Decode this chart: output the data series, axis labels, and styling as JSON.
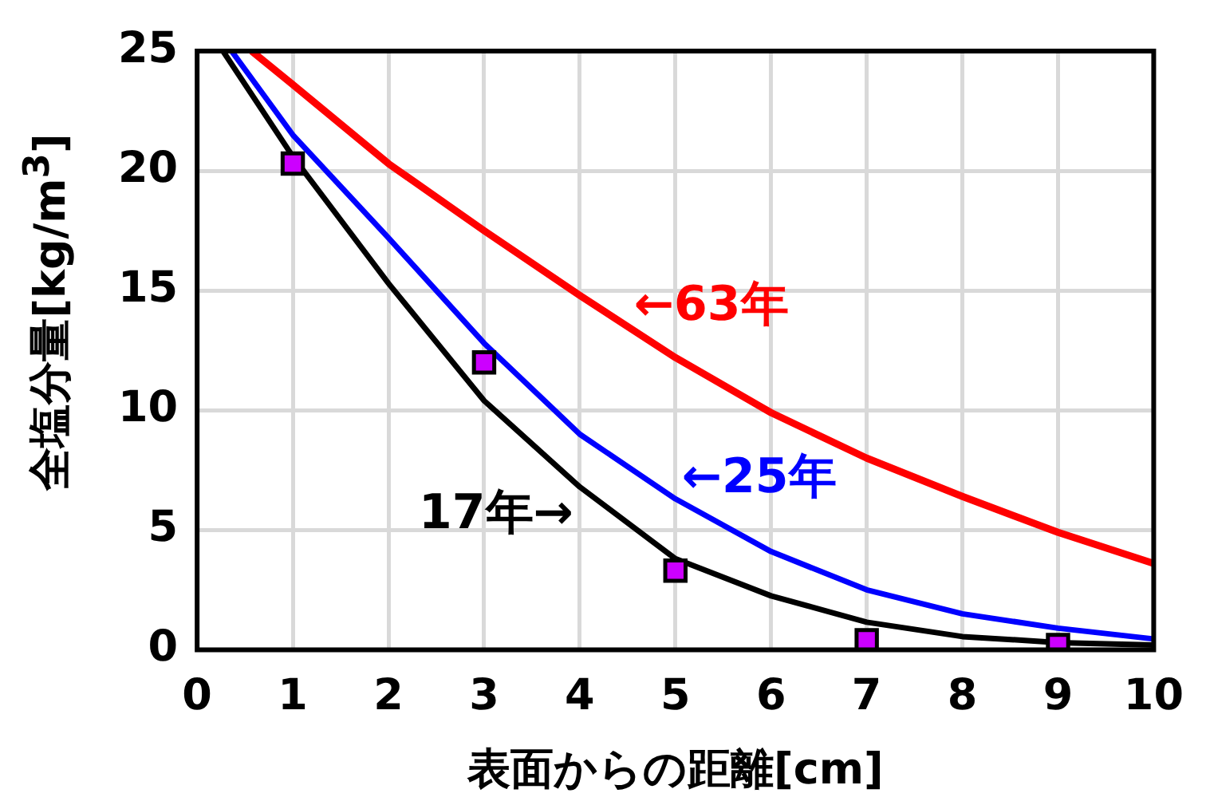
{
  "chart_data": {
    "type": "line",
    "xlabel": "表面からの距離[cm]",
    "ylabel": "全塩分量[kg/m$^{3}$]",
    "xlim": [
      0,
      10
    ],
    "xticks": [
      0,
      1,
      2,
      3,
      4,
      5,
      6,
      7,
      8,
      9,
      10
    ],
    "ylim": [
      0,
      25
    ],
    "yticks": [
      0,
      5,
      10,
      15,
      20,
      25
    ],
    "grid": true,
    "legend": false,
    "marker": "none",
    "line_style": "solid",
    "series": [
      {
        "color": "#ff0000",
        "x": [
          0.57,
          1,
          2,
          3,
          4,
          5,
          6,
          7,
          8,
          9,
          10
        ],
        "values": [
          25,
          23.6,
          20.3,
          17.5,
          14.8,
          12.2,
          9.9,
          8.0,
          6.4,
          4.9,
          3.6
        ]
      },
      {
        "color": "#0000ff",
        "x": [
          0.36,
          1,
          2,
          3,
          4,
          5,
          6,
          7,
          8,
          9,
          10
        ],
        "values": [
          25,
          21.5,
          17.2,
          12.8,
          9.0,
          6.3,
          4.1,
          2.5,
          1.5,
          0.9,
          0.45
        ]
      },
      {
        "color": "#000000",
        "x": [
          0.27,
          1,
          2,
          3,
          4,
          5,
          6,
          7,
          8,
          9,
          10
        ],
        "values": [
          25,
          20.6,
          15.3,
          10.4,
          6.8,
          3.8,
          2.25,
          1.15,
          0.55,
          0.3,
          0.2
        ]
      },
      {
        "type": "scatter",
        "marker": "square",
        "color": "#cc00ff",
        "x": [
          1,
          3,
          5,
          7,
          9
        ],
        "values": [
          20.3,
          12,
          3.3,
          0.4,
          0.2
        ]
      }
    ],
    "annotations": [
      {
        "text": "←63年",
        "x": 4.5,
        "y": 13.5
      },
      {
        "text": "←25年",
        "x": 5,
        "y": 6.3
      },
      {
        "text": "17年→",
        "x": 4,
        "y": 6.8
      }
    ]
  }
}
